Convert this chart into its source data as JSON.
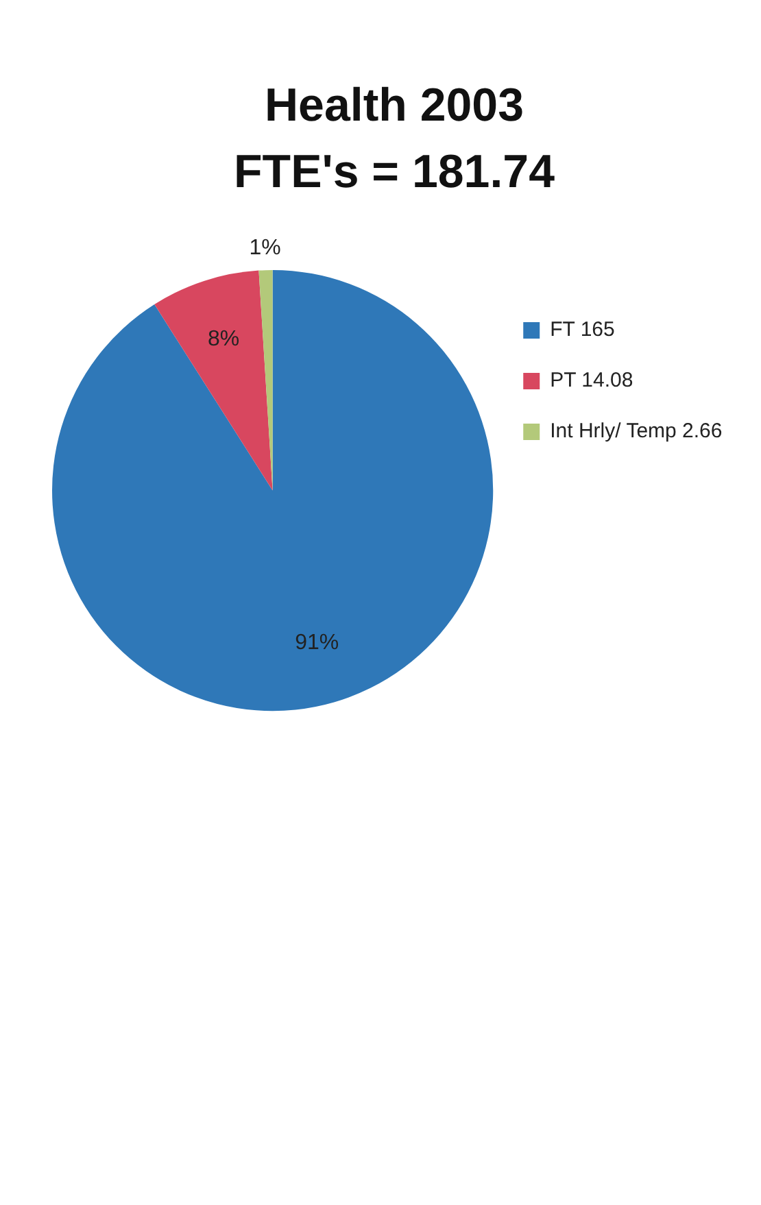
{
  "chart_data": {
    "type": "pie",
    "title": "Health 2003",
    "subtitle": "FTE's = 181.74",
    "categories": [
      "FT 165",
      "PT 14.08",
      "Int Hrly/ Temp 2.66"
    ],
    "values": [
      91,
      8,
      1
    ],
    "colors": [
      "#2f78b8",
      "#d8475f",
      "#b3c97a"
    ],
    "value_labels": [
      "91%",
      "8%",
      "1%"
    ],
    "legend": "right"
  }
}
